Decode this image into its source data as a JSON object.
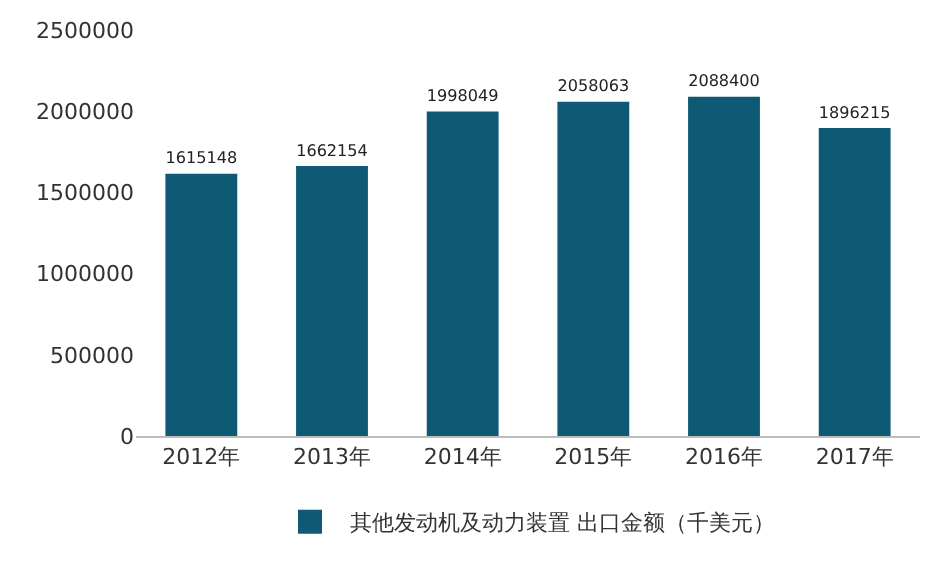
{
  "chart_data": {
    "type": "bar",
    "categories": [
      "2012年",
      "2013年",
      "2014年",
      "2015年",
      "2016年",
      "2017年"
    ],
    "series": [
      {
        "name": "其他发动机及动力装置 出口金额（千美元）",
        "color": "#0e5a74",
        "values": [
          1615148,
          1662154,
          1998049,
          2058063,
          2088400,
          1896215
        ]
      }
    ],
    "ylim": [
      0,
      2500000
    ],
    "yticks": [
      0,
      500000,
      1000000,
      1500000,
      2000000,
      2500000
    ],
    "grid": false,
    "legend": "bottom",
    "data_labels": true
  }
}
